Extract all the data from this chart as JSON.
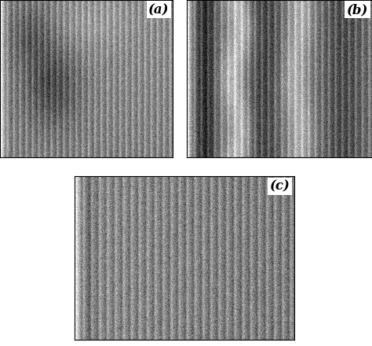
{
  "background_color": "#ffffff",
  "label_a": "(a)",
  "label_b": "(b)",
  "label_c": "(c)",
  "label_fontsize": 12,
  "label_fontweight": "bold",
  "fig_width": 4.74,
  "fig_height": 4.4,
  "dpi": 100,
  "seed": 7
}
